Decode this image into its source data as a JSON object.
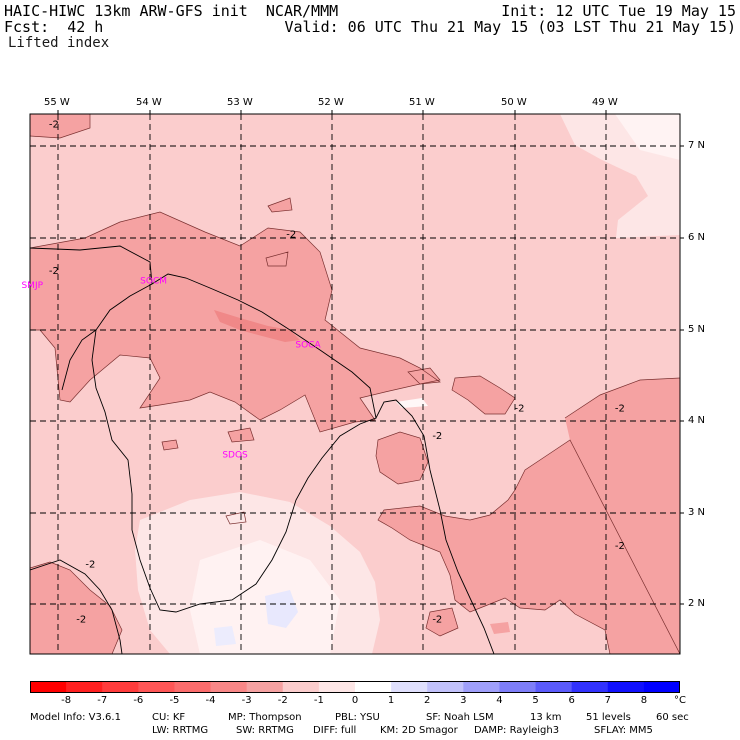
{
  "header": {
    "left1": "HAIC-HIWC 13km ARW-GFS init  NCAR/MMM",
    "left2": "Fcst:  42 h",
    "right1": "Init: 12 UTC Tue 19 May 15",
    "right2": "Valid: 06 UTC Thu 21 May 15 (03 LST Thu 21 May 15)",
    "field": "Lifted index"
  },
  "map": {
    "lon_labels": [
      "55 W",
      "54 W",
      "53 W",
      "52 W",
      "51 W",
      "50 W",
      "49 W"
    ],
    "lat_labels": [
      "7 N",
      "6 N",
      "5 N",
      "4 N",
      "3 N",
      "2 N"
    ],
    "stations": [
      {
        "id": "SMJP",
        "lon": -55.4,
        "lat": 5.45
      },
      {
        "id": "SOCM",
        "lon": -54.1,
        "lat": 5.5
      },
      {
        "id": "SOCA",
        "lon": -52.4,
        "lat": 4.8
      },
      {
        "id": "SDOS",
        "lon": -53.2,
        "lat": 3.6
      }
    ],
    "contour_labels": [
      {
        "text": "-2",
        "lon": -55.1,
        "lat": 7.2
      },
      {
        "text": "-2",
        "lon": -55.1,
        "lat": 5.6
      },
      {
        "text": "-2",
        "lon": -52.5,
        "lat": 6.0
      },
      {
        "text": "-2",
        "lon": -50.0,
        "lat": 4.1
      },
      {
        "text": "-2",
        "lon": -48.9,
        "lat": 4.1
      },
      {
        "text": "-2",
        "lon": -50.9,
        "lat": 3.8
      },
      {
        "text": "-2",
        "lon": -54.7,
        "lat": 2.4
      },
      {
        "text": "-2",
        "lon": -48.9,
        "lat": 2.6
      },
      {
        "text": "-2",
        "lon": -54.8,
        "lat": 1.8
      },
      {
        "text": "-2",
        "lon": -50.9,
        "lat": 1.8
      }
    ],
    "colors": {
      "outer": "#fbcdcd",
      "level_m2": "#f5a2a2",
      "level_m3": "#f08888",
      "level_m1": "#fde6e6",
      "near_zero": "#fff7f7",
      "positive": "#e8e8fd",
      "station": "#ff00ff"
    }
  },
  "colorbar": {
    "labels": [
      "-8",
      "-7",
      "-6",
      "-5",
      "-4",
      "-3",
      "-2",
      "-1",
      "0",
      "1",
      "2",
      "3",
      "4",
      "5",
      "6",
      "7",
      "8"
    ],
    "unit": "°C",
    "colors": [
      "#ff0000",
      "#ff2020",
      "#ff3c3c",
      "#fe5656",
      "#fb6c6c",
      "#f88787",
      "#f5a2a2",
      "#fbcdcd",
      "#fde6e6",
      "#ffffff",
      "#e0e0fd",
      "#c2c2fb",
      "#9f9ffa",
      "#7e7ef8",
      "#5b5bfb",
      "#3232fd",
      "#1010fd",
      "#0000ff"
    ]
  },
  "footer": {
    "line1": [
      "Model Info: V3.6.1",
      "CU: KF",
      "MP: Thompson",
      "PBL: YSU",
      "SF: Noah LSM",
      "13 km",
      "51 levels",
      "60 sec"
    ],
    "line2": [
      "LW: RRTMG",
      "SW: RRTMG",
      "DIFF: full",
      "KM: 2D Smagor",
      "DAMP: Rayleigh3",
      "SFLAY: MM5"
    ]
  }
}
